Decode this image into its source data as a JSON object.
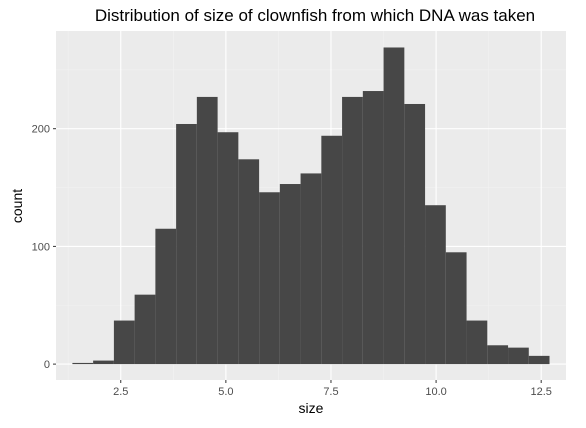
{
  "chart_data": {
    "type": "bar",
    "title": "Distribution of size of clownfish from which DNA was taken",
    "xlabel": "size",
    "ylabel": "count",
    "bin_width": 0.4934,
    "bins": [
      {
        "x_start": 1.35,
        "x_end": 1.843,
        "count": 1
      },
      {
        "x_start": 1.843,
        "x_end": 2.337,
        "count": 3
      },
      {
        "x_start": 2.337,
        "x_end": 2.83,
        "count": 37
      },
      {
        "x_start": 2.83,
        "x_end": 3.324,
        "count": 59
      },
      {
        "x_start": 3.324,
        "x_end": 3.817,
        "count": 115
      },
      {
        "x_start": 3.817,
        "x_end": 4.31,
        "count": 204
      },
      {
        "x_start": 4.31,
        "x_end": 4.804,
        "count": 227
      },
      {
        "x_start": 4.804,
        "x_end": 5.297,
        "count": 197
      },
      {
        "x_start": 5.297,
        "x_end": 5.791,
        "count": 174
      },
      {
        "x_start": 5.791,
        "x_end": 6.284,
        "count": 146
      },
      {
        "x_start": 6.284,
        "x_end": 6.777,
        "count": 153
      },
      {
        "x_start": 6.777,
        "x_end": 7.271,
        "count": 162
      },
      {
        "x_start": 7.271,
        "x_end": 7.764,
        "count": 194
      },
      {
        "x_start": 7.764,
        "x_end": 8.258,
        "count": 227
      },
      {
        "x_start": 8.258,
        "x_end": 8.751,
        "count": 232
      },
      {
        "x_start": 8.751,
        "x_end": 9.245,
        "count": 269
      },
      {
        "x_start": 9.245,
        "x_end": 9.738,
        "count": 221
      },
      {
        "x_start": 9.738,
        "x_end": 10.231,
        "count": 135
      },
      {
        "x_start": 10.231,
        "x_end": 10.725,
        "count": 95
      },
      {
        "x_start": 10.725,
        "x_end": 11.218,
        "count": 37
      },
      {
        "x_start": 11.218,
        "x_end": 11.712,
        "count": 16
      },
      {
        "x_start": 11.712,
        "x_end": 12.205,
        "count": 14
      },
      {
        "x_start": 12.205,
        "x_end": 12.698,
        "count": 7
      }
    ],
    "xlim": [
      0.96,
      13.09
    ],
    "ylim": [
      -13.5,
      283
    ],
    "x_ticks": [
      2.5,
      5.0,
      7.5,
      10.0,
      12.5
    ],
    "x_tick_labels": [
      "2.5",
      "5.0",
      "7.5",
      "10.0",
      "12.5"
    ],
    "y_ticks": [
      0,
      100,
      200
    ],
    "y_tick_labels": [
      "0",
      "100",
      "200"
    ],
    "grid": true,
    "colors": {
      "panel_background": "#ebebeb",
      "grid_major": "#ffffff",
      "grid_minor": "#f5f5f5",
      "bar_fill": "#474747"
    }
  }
}
